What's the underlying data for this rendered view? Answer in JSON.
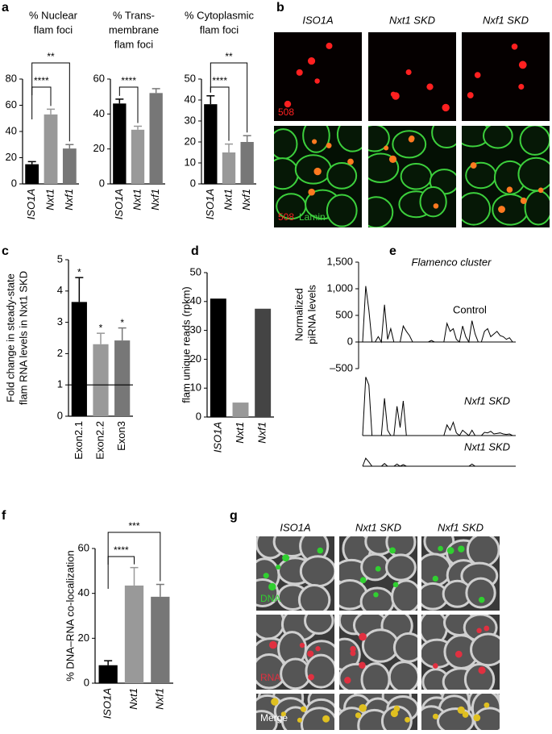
{
  "panel_labels": [
    "a",
    "b",
    "c",
    "d",
    "e",
    "f",
    "g"
  ],
  "panel_b": {
    "columns": [
      "ISO1A",
      "Nxt1 SKD",
      "Nxf1 SKD"
    ],
    "row_labels": [
      "508",
      "508",
      "Lamin"
    ]
  },
  "panel_g": {
    "columns": [
      "ISO1A",
      "Nxt1 SKD",
      "Nxf1 SKD"
    ],
    "row_labels": [
      "DNA",
      "RNA",
      "Merge"
    ]
  },
  "chart_data": [
    {
      "type": "bar",
      "title": [
        "% Nuclear",
        "flam foci"
      ],
      "categories": [
        "ISO1A",
        "Nxt1",
        "Nxf1"
      ],
      "values": [
        15,
        53,
        27
      ],
      "errors": [
        2,
        4,
        3
      ],
      "colors": [
        "#000000",
        "#999999",
        "#777777"
      ],
      "ylim": [
        0,
        80
      ],
      "yticks": [
        0,
        20,
        40,
        60,
        80
      ],
      "brackets": [
        {
          "from": 0,
          "to": 1,
          "label": "****"
        },
        {
          "from": 0,
          "to": 2,
          "label": "**"
        }
      ]
    },
    {
      "type": "bar",
      "title": [
        "% Trans-",
        "membrane",
        "flam foci"
      ],
      "categories": [
        "ISO1A",
        "Nxt1",
        "Nxf1"
      ],
      "values": [
        46,
        31,
        52
      ],
      "errors": [
        2.5,
        2,
        2.5
      ],
      "colors": [
        "#000000",
        "#999999",
        "#777777"
      ],
      "ylim": [
        0,
        60
      ],
      "yticks": [
        0,
        20,
        40,
        60
      ],
      "brackets": [
        {
          "from": 0,
          "to": 1,
          "label": "****"
        }
      ]
    },
    {
      "type": "bar",
      "title": [
        "% Cytoplasmic",
        "flam foci"
      ],
      "categories": [
        "ISO1A",
        "Nxt1",
        "Nxf1"
      ],
      "values": [
        38,
        15,
        20
      ],
      "errors": [
        4,
        4,
        3
      ],
      "colors": [
        "#000000",
        "#999999",
        "#777777"
      ],
      "ylim": [
        0,
        50
      ],
      "yticks": [
        0,
        10,
        20,
        30,
        40,
        50
      ],
      "brackets": [
        {
          "from": 0,
          "to": 1,
          "label": "****"
        },
        {
          "from": 0,
          "to": 2,
          "label": "**"
        }
      ]
    },
    {
      "type": "bar",
      "ylabel": [
        "Fold change in steady-state",
        "flam RNA levels in Nxt1 SKD"
      ],
      "categories": [
        "Exon2.1",
        "Exon2.2",
        "Exon3"
      ],
      "values": [
        3.65,
        2.3,
        2.42
      ],
      "errors": [
        0.78,
        0.35,
        0.4
      ],
      "value_labels": [
        "*",
        "*",
        "*"
      ],
      "colors": [
        "#000000",
        "#999999",
        "#777777"
      ],
      "ylim": [
        0,
        5
      ],
      "yticks": [
        0,
        1,
        2,
        3,
        4,
        5
      ],
      "reference_line": 1
    },
    {
      "type": "bar",
      "ylabel": [
        "flam unique reads (rpkm)"
      ],
      "categories": [
        "ISO1A",
        "Nxt1",
        "Nxf1"
      ],
      "values": [
        41,
        5,
        37.5
      ],
      "colors": [
        "#000000",
        "#999999",
        "#444444"
      ],
      "ylim": [
        0,
        50
      ],
      "yticks": [
        0,
        10,
        20,
        30,
        40,
        50
      ]
    },
    {
      "type": "line",
      "title": "Flamenco cluster",
      "ylabel": [
        "Normalized",
        "piRNA levels"
      ],
      "ylim": [
        -500,
        1500
      ],
      "yticks": [
        {
          "value": -500,
          "label": "–500"
        },
        0,
        500,
        {
          "value": 1000,
          "label": "1,000"
        },
        {
          "value": 1500,
          "label": "1,500"
        }
      ],
      "xlim": [
        0,
        49
      ],
      "x": [
        0,
        1,
        2,
        3,
        4,
        5,
        6,
        7,
        8,
        9,
        10,
        11,
        12,
        13,
        14,
        15,
        16,
        17,
        18,
        19,
        20,
        21,
        22,
        23,
        24,
        25,
        26,
        27,
        28,
        29,
        30,
        31,
        32,
        33,
        34,
        35,
        36,
        37,
        38,
        39,
        40,
        41,
        42,
        43,
        44,
        45,
        46,
        47,
        48,
        49
      ],
      "series": [
        {
          "name": "Control",
          "color": "#000000",
          "values": [
            0,
            1050,
            600,
            0,
            0,
            100,
            0,
            700,
            50,
            250,
            0,
            0,
            0,
            300,
            200,
            120,
            0,
            0,
            0,
            0,
            0,
            0,
            30,
            0,
            0,
            0,
            0,
            350,
            200,
            250,
            50,
            0,
            300,
            100,
            0,
            400,
            150,
            0,
            0,
            200,
            250,
            100,
            150,
            200,
            120,
            100,
            50,
            80,
            0,
            0
          ]
        },
        {
          "name": "Nxf1 SKD",
          "color": "#000000",
          "values": [
            0,
            1100,
            950,
            0,
            0,
            0,
            0,
            700,
            100,
            0,
            0,
            550,
            150,
            650,
            0,
            0,
            0,
            0,
            0,
            0,
            0,
            0,
            0,
            0,
            0,
            0,
            0,
            200,
            100,
            250,
            50,
            0,
            100,
            50,
            0,
            100,
            0,
            0,
            0,
            60,
            50,
            80,
            30,
            40,
            50,
            30,
            20,
            30,
            0,
            0
          ]
        },
        {
          "name": "Nxt1 SKD",
          "color": "#000000",
          "values": [
            0,
            150,
            80,
            0,
            0,
            0,
            0,
            50,
            0,
            0,
            0,
            40,
            0,
            30,
            0,
            0,
            0,
            0,
            0,
            0,
            0,
            0,
            0,
            0,
            0,
            0,
            0,
            0,
            0,
            0,
            0,
            0,
            0,
            0,
            0,
            40,
            0,
            0,
            0,
            0,
            0,
            0,
            0,
            0,
            0,
            0,
            0,
            0,
            0,
            0
          ]
        }
      ]
    },
    {
      "type": "bar",
      "ylabel": [
        "% DNA–RNA co-localization"
      ],
      "categories": [
        "ISO1A",
        "Nxt1",
        "Nxf1"
      ],
      "values": [
        8,
        43.5,
        38.5
      ],
      "errors": [
        2,
        8,
        5.5
      ],
      "colors": [
        "#000000",
        "#999999",
        "#777777"
      ],
      "ylim": [
        0,
        60
      ],
      "yticks": [
        0,
        20,
        40,
        60
      ],
      "brackets": [
        {
          "from": 0,
          "to": 1,
          "label": "****"
        },
        {
          "from": 0,
          "to": 2,
          "label": "***"
        }
      ]
    }
  ]
}
